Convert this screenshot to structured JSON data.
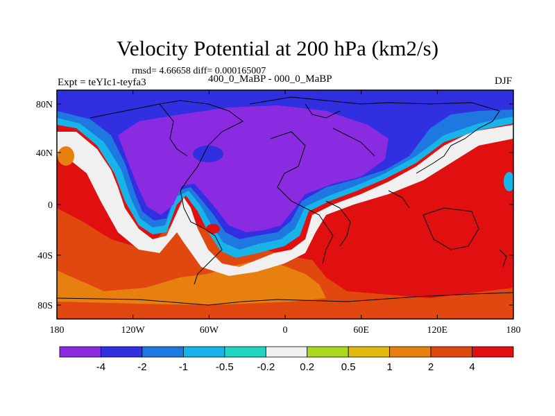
{
  "title": "Velocity Potential at 200 hPa (km2/s)",
  "stats": "rmsd= 4.66658 diff= 0.000165007",
  "left_label": "Expt = teYIc1-teyfa3",
  "center_label": "400_0_MaBP - 000_0_MaBP",
  "right_label": "DJF",
  "y_ticks": [
    "80N",
    "40N",
    "0",
    "40S",
    "80S"
  ],
  "x_ticks": [
    "180",
    "120W",
    "60W",
    "0",
    "60E",
    "120E",
    "180"
  ],
  "colorbar": {
    "colors": [
      "#8a2be2",
      "#3030e0",
      "#1e78e0",
      "#18b4e8",
      "#20d6c0",
      "#f0f0f0",
      "#a8d820",
      "#e0b810",
      "#e88010",
      "#e04810",
      "#e01010"
    ],
    "labels": [
      "-4",
      "-2",
      "-1",
      "-0.5",
      "-0.2",
      "0.2",
      "0.5",
      "1",
      "2",
      "4"
    ]
  }
}
